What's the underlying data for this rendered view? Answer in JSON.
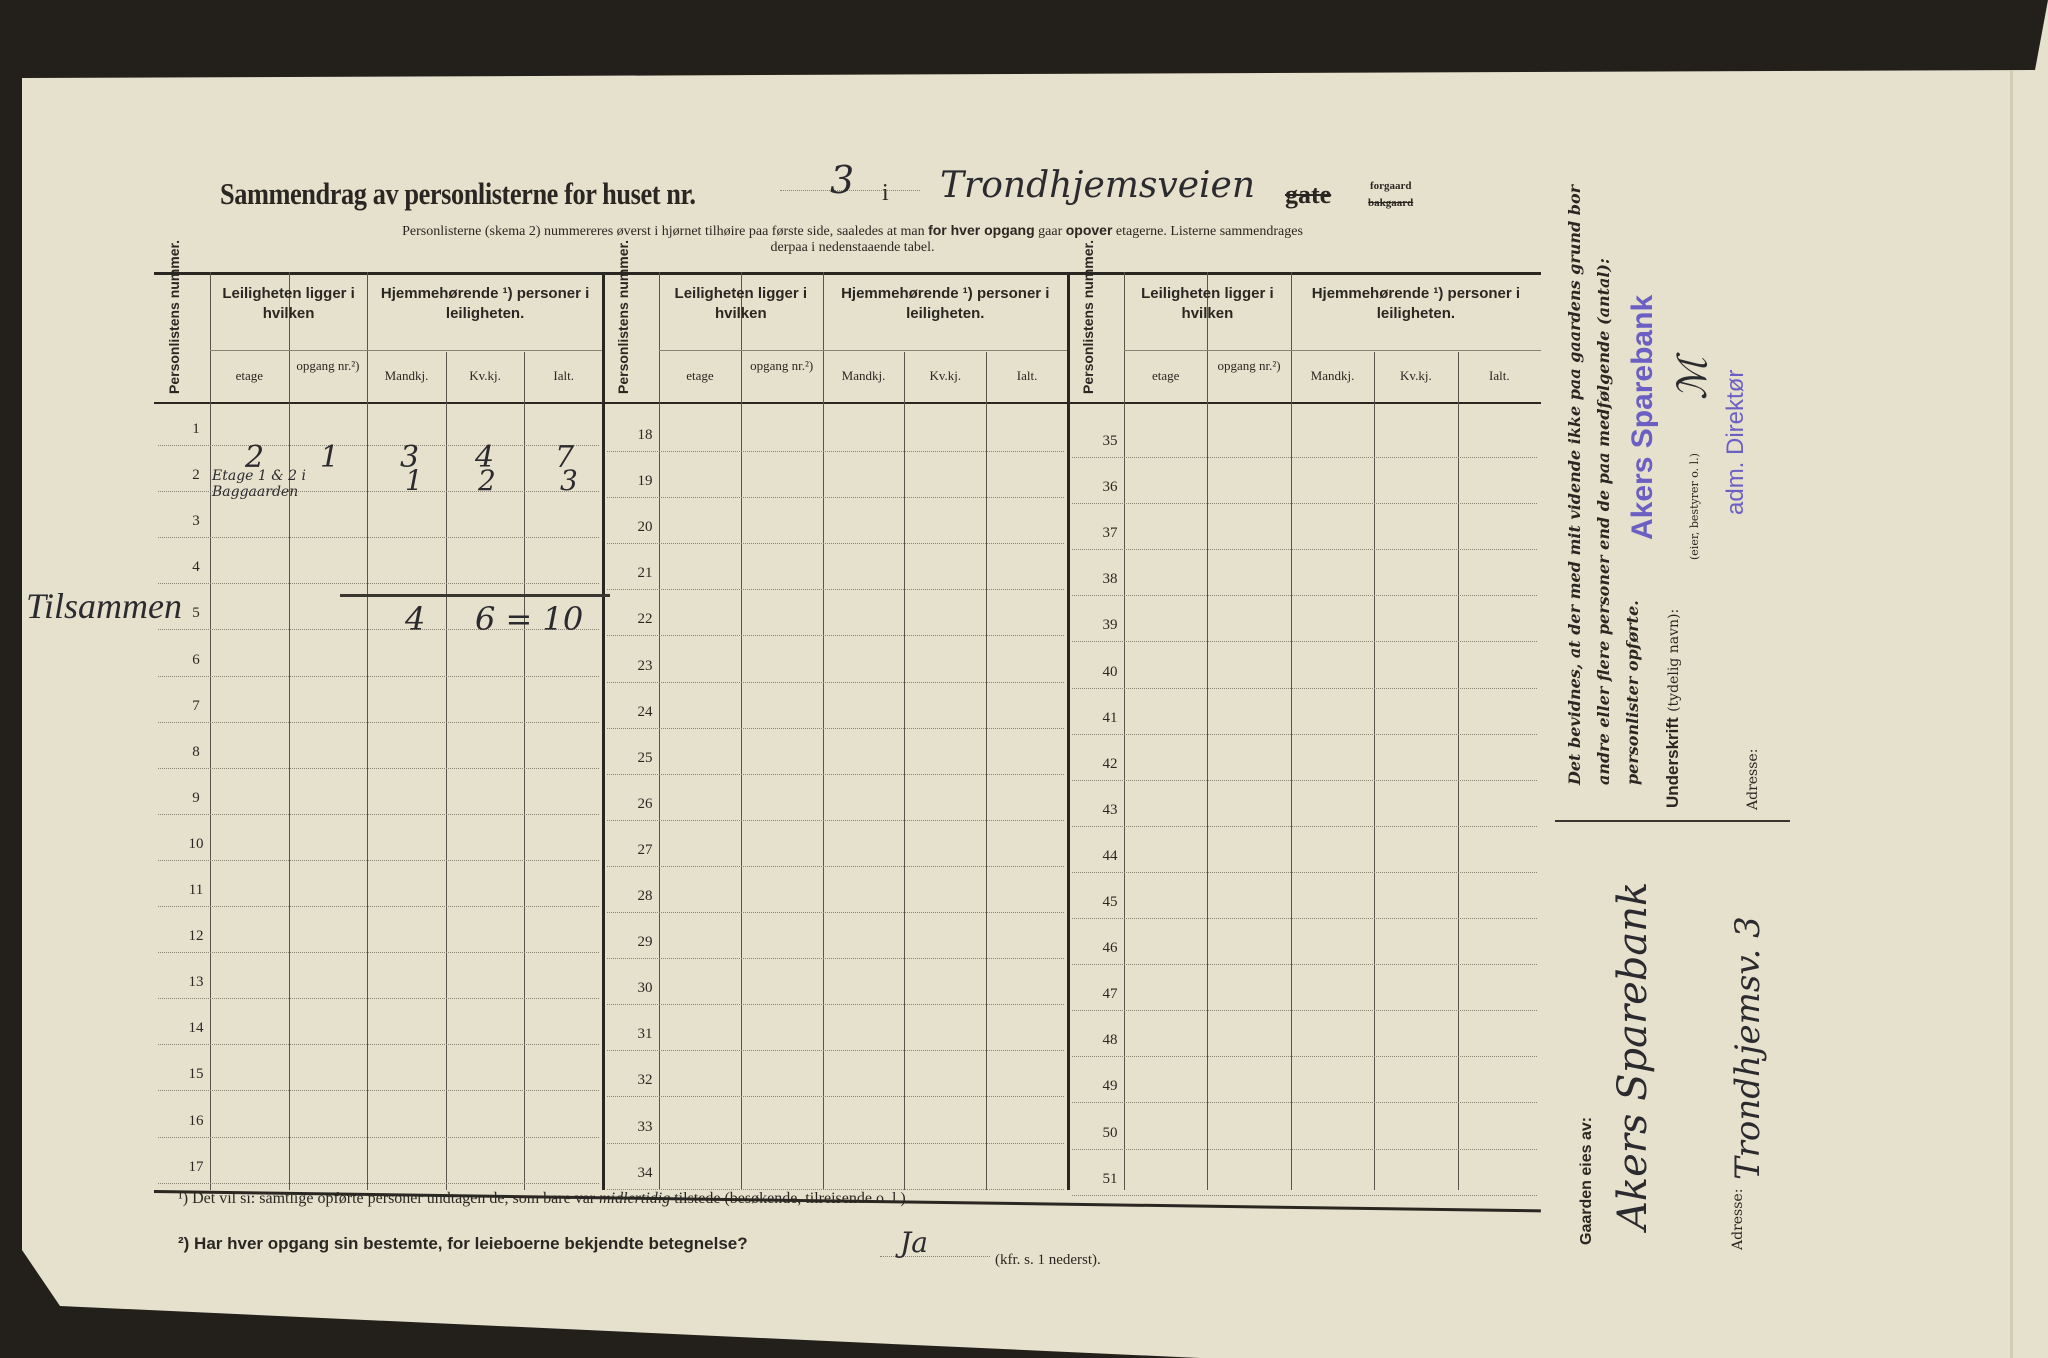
{
  "title": {
    "prefix": "Sammendrag av personlisterne for huset nr.",
    "house_number": "3",
    "in_word": "i",
    "street": "Trondhjemsveien",
    "gate_struck": "gate",
    "forgaard": "forgaard",
    "bakgaard_struck": "bakgaard"
  },
  "instructions": {
    "line1_a": "Personlisterne (skema 2) nummereres øverst i hjørnet tilhøire paa første side, saaledes at man ",
    "line1_b": "for hver opgang",
    "line1_c": " gaar ",
    "line1_d": "opover",
    "line1_e": " etagerne.  Listerne sammendrages",
    "line2": "derpaa i nedenstaaende tabel."
  },
  "table_header": {
    "col_num": "Personlistens nummer.",
    "group1": "Leiligheten ligger i hvilken",
    "etage": "etage",
    "opgang": "opgang nr.²)",
    "group2": "Hjemmehørende ¹) personer i leiligheten.",
    "mandkj": "Mandkj.",
    "kvkj": "Kv.kj.",
    "ialt": "Ialt."
  },
  "blocks": [
    {
      "numbers": [
        "1",
        "2",
        "3",
        "4",
        "5",
        "6",
        "7",
        "8",
        "9",
        "10",
        "11",
        "12",
        "13",
        "14",
        "15",
        "16",
        "17"
      ]
    },
    {
      "numbers": [
        "18",
        "19",
        "20",
        "21",
        "22",
        "23",
        "24",
        "25",
        "26",
        "27",
        "28",
        "29",
        "30",
        "31",
        "32",
        "33",
        "34"
      ]
    },
    {
      "numbers": [
        "35",
        "36",
        "37",
        "38",
        "39",
        "40",
        "41",
        "42",
        "43",
        "44",
        "45",
        "46",
        "47",
        "48",
        "49",
        "50",
        "51"
      ]
    }
  ],
  "entries": {
    "row1": {
      "etage": "2",
      "opgang": "1",
      "mandkj": "3",
      "kvkj": "4",
      "ialt": "7"
    },
    "row2": {
      "etage_note": "Etage 1 & 2 i Baggaarden",
      "mandkj": "1",
      "kvkj": "2",
      "ialt": "3"
    },
    "total_label": "Tilsammen",
    "total_mandkj": "4",
    "total_kvkj_ialt": "6 = 10"
  },
  "footnotes": {
    "f1_a": "¹)  Det vil si: samtlige opførte personer undtagen de, som bare var ",
    "f1_b": "midlertidig",
    "f1_c": " tilstede (besøkende, tilreisende o. l.).",
    "f2": "²)  Har hver opgang sin bestemte, for leieboerne bekjendte betegnelse?",
    "f2_answer": "Ja",
    "f2_ref": "(kfr. s. 1 nederst)."
  },
  "certification": {
    "text1": "Det bevidnes, at der med mit vidende ikke paa gaardens grund bor",
    "text2": "andre eller flere personer end de paa medfølgende (antal):",
    "text3": "personlister opførte.",
    "signature_label": "Underskrift",
    "signature_hint": "(tydelig navn):",
    "role_hint": "(eier, bestyrer o. l.)",
    "stamp_name": "Akers Sparebank",
    "stamp_title": "adm. Direktør",
    "address_label": "Adresse:"
  },
  "owner": {
    "label": "Gaarden eies av:",
    "value": "Akers Sparebank",
    "address_label": "Adresse:",
    "address_value": "Trondhjemsv. 3"
  },
  "colors": {
    "paper": "#e6e1cd",
    "background": "#231f1b",
    "stamp": "#6c5fc4",
    "ink": "#2a2722"
  }
}
